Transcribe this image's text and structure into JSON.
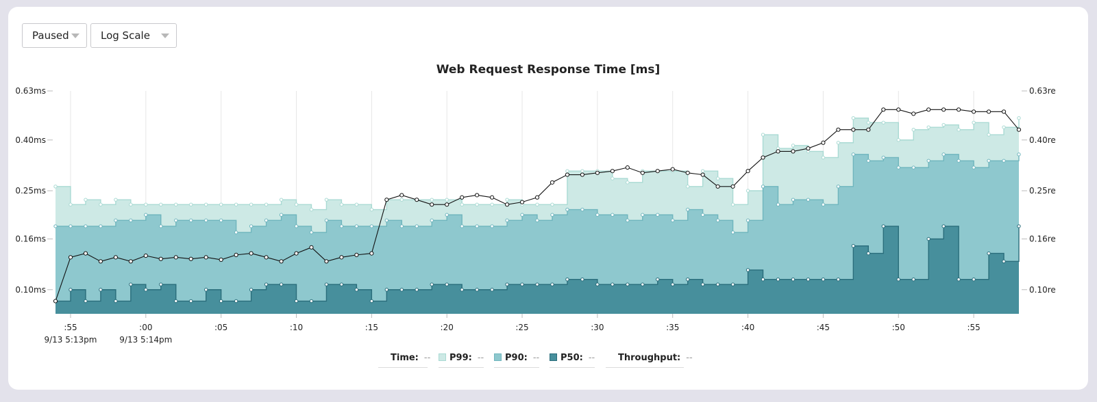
{
  "controls": {
    "state": {
      "selected": "Paused"
    },
    "scale": {
      "selected": "Log Scale"
    }
  },
  "legend": [
    {
      "label": "Time:",
      "value": "--",
      "swatch": null
    },
    {
      "label": "P99:",
      "value": "--",
      "swatch": "p99"
    },
    {
      "label": "P90:",
      "value": "--",
      "swatch": "p90"
    },
    {
      "label": "P50:",
      "value": "--",
      "swatch": "p50"
    },
    {
      "label": "Throughput:",
      "value": "--",
      "swatch": null
    }
  ],
  "colors": {
    "p99_fill": "#cde9e5",
    "p99_line": "#a9dad3",
    "p90_fill": "#8ec8ce",
    "p90_line": "#6fb5bd",
    "p50_fill": "#478f9c",
    "p50_line": "#2a6d7b",
    "throughput_line": "#111111",
    "grid": "#e6e6e6",
    "axis_text": "#222222"
  },
  "chart_data": {
    "type": "area",
    "title": "Web Request Response Time [ms]",
    "scale": "log",
    "ylim": [
      0.08,
      0.63
    ],
    "y_ticks": [
      {
        "value": 0.63,
        "label": "0.63ms"
      },
      {
        "value": 0.4,
        "label": "0.40ms"
      },
      {
        "value": 0.25,
        "label": "0.25ms"
      },
      {
        "value": 0.16,
        "label": "0.16ms"
      },
      {
        "value": 0.1,
        "label": "0.10ms"
      }
    ],
    "y2_ticks": [
      {
        "value": 0.63,
        "label": "0.63re"
      },
      {
        "value": 0.4,
        "label": "0.40re"
      },
      {
        "value": 0.25,
        "label": "0.25re"
      },
      {
        "value": 0.16,
        "label": "0.16re"
      },
      {
        "value": 0.1,
        "label": "0.10re"
      }
    ],
    "x_range_seconds": [
      54,
      118
    ],
    "x_ticks": [
      {
        "x": 55,
        "label": ":55",
        "sub": "9/13 5:13pm"
      },
      {
        "x": 60,
        "label": ":00",
        "sub": "9/13 5:14pm"
      },
      {
        "x": 65,
        "label": ":05",
        "sub": ""
      },
      {
        "x": 70,
        "label": ":10",
        "sub": ""
      },
      {
        "x": 75,
        "label": ":15",
        "sub": ""
      },
      {
        "x": 80,
        "label": ":20",
        "sub": ""
      },
      {
        "x": 85,
        "label": ":25",
        "sub": ""
      },
      {
        "x": 90,
        "label": ":30",
        "sub": ""
      },
      {
        "x": 95,
        "label": ":35",
        "sub": ""
      },
      {
        "x": 100,
        "label": ":40",
        "sub": ""
      },
      {
        "x": 105,
        "label": ":45",
        "sub": ""
      },
      {
        "x": 110,
        "label": ":50",
        "sub": ""
      },
      {
        "x": 115,
        "label": ":55",
        "sub": ""
      }
    ],
    "x": [
      54,
      55,
      56,
      57,
      58,
      59,
      60,
      61,
      62,
      63,
      64,
      65,
      66,
      67,
      68,
      69,
      70,
      71,
      72,
      73,
      74,
      75,
      76,
      77,
      78,
      79,
      80,
      81,
      82,
      83,
      84,
      85,
      86,
      87,
      88,
      89,
      90,
      91,
      92,
      93,
      94,
      95,
      96,
      97,
      98,
      99,
      100,
      101,
      102,
      103,
      104,
      105,
      106,
      107,
      108,
      109,
      110,
      111,
      112,
      113,
      114,
      115,
      116,
      117,
      118
    ],
    "series": [
      {
        "name": "P99",
        "values": [
          0.26,
          0.22,
          0.23,
          0.22,
          0.23,
          0.22,
          0.22,
          0.22,
          0.22,
          0.22,
          0.22,
          0.22,
          0.22,
          0.22,
          0.22,
          0.23,
          0.22,
          0.21,
          0.23,
          0.22,
          0.22,
          0.21,
          0.23,
          0.23,
          0.23,
          0.23,
          0.23,
          0.22,
          0.22,
          0.22,
          0.23,
          0.22,
          0.22,
          0.22,
          0.3,
          0.3,
          0.3,
          0.28,
          0.27,
          0.3,
          0.3,
          0.3,
          0.26,
          0.3,
          0.28,
          0.22,
          0.25,
          0.42,
          0.37,
          0.38,
          0.36,
          0.34,
          0.39,
          0.49,
          0.47,
          0.47,
          0.4,
          0.44,
          0.45,
          0.46,
          0.44,
          0.47,
          0.42,
          0.45,
          0.49
        ]
      },
      {
        "name": "P90",
        "values": [
          0.18,
          0.18,
          0.18,
          0.18,
          0.19,
          0.19,
          0.2,
          0.18,
          0.19,
          0.19,
          0.19,
          0.19,
          0.17,
          0.18,
          0.19,
          0.2,
          0.18,
          0.17,
          0.19,
          0.18,
          0.18,
          0.18,
          0.19,
          0.18,
          0.18,
          0.19,
          0.2,
          0.18,
          0.18,
          0.18,
          0.19,
          0.2,
          0.19,
          0.2,
          0.21,
          0.21,
          0.2,
          0.2,
          0.19,
          0.2,
          0.2,
          0.19,
          0.21,
          0.2,
          0.19,
          0.17,
          0.19,
          0.26,
          0.22,
          0.23,
          0.23,
          0.22,
          0.26,
          0.35,
          0.33,
          0.34,
          0.31,
          0.31,
          0.33,
          0.35,
          0.33,
          0.31,
          0.33,
          0.33,
          0.35
        ]
      },
      {
        "name": "P50",
        "values": [
          0.09,
          0.1,
          0.09,
          0.1,
          0.09,
          0.105,
          0.1,
          0.105,
          0.09,
          0.09,
          0.1,
          0.09,
          0.09,
          0.1,
          0.105,
          0.105,
          0.09,
          0.09,
          0.105,
          0.105,
          0.1,
          0.09,
          0.1,
          0.1,
          0.1,
          0.105,
          0.105,
          0.1,
          0.1,
          0.1,
          0.105,
          0.105,
          0.105,
          0.105,
          0.11,
          0.11,
          0.105,
          0.105,
          0.105,
          0.105,
          0.11,
          0.105,
          0.11,
          0.105,
          0.105,
          0.105,
          0.12,
          0.11,
          0.11,
          0.11,
          0.11,
          0.11,
          0.11,
          0.15,
          0.14,
          0.18,
          0.11,
          0.11,
          0.16,
          0.18,
          0.11,
          0.11,
          0.14,
          0.13,
          0.18
        ]
      },
      {
        "name": "Throughput",
        "values": [
          0.09,
          0.135,
          0.14,
          0.13,
          0.135,
          0.13,
          0.137,
          0.133,
          0.135,
          0.133,
          0.135,
          0.132,
          0.138,
          0.14,
          0.135,
          0.13,
          0.14,
          0.148,
          0.13,
          0.135,
          0.138,
          0.14,
          0.23,
          0.24,
          0.23,
          0.22,
          0.22,
          0.235,
          0.24,
          0.235,
          0.22,
          0.225,
          0.235,
          0.27,
          0.29,
          0.29,
          0.295,
          0.3,
          0.31,
          0.295,
          0.3,
          0.305,
          0.295,
          0.29,
          0.26,
          0.26,
          0.3,
          0.34,
          0.36,
          0.36,
          0.37,
          0.39,
          0.44,
          0.44,
          0.44,
          0.53,
          0.53,
          0.51,
          0.53,
          0.53,
          0.53,
          0.52,
          0.52,
          0.52,
          0.44
        ]
      }
    ]
  }
}
